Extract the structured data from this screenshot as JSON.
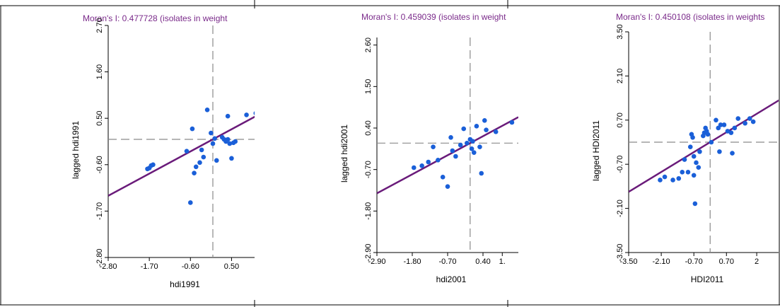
{
  "chart_data": [
    {
      "type": "scatter",
      "title": "Moran's I: 0.477728 (isolates in weight",
      "xlabel": "hdi1991",
      "ylabel": "lagged hdi1991",
      "xlim": [
        -2.8,
        1.4
      ],
      "ylim": [
        -2.8,
        2.7
      ],
      "xticks": [
        "-2.80",
        "-1.70",
        "-0.60",
        "0.50"
      ],
      "yticks": [
        "-2.80",
        "-1.70",
        "-0.60",
        "0.50",
        "1.60",
        "2.70"
      ],
      "regression": {
        "slope": 0.477728,
        "intercept": 0.0
      },
      "reference_lines": {
        "x": 0,
        "y": 0
      },
      "points": [
        [
          -1.75,
          -0.7
        ],
        [
          -1.7,
          -0.68
        ],
        [
          -1.65,
          -0.62
        ],
        [
          -1.6,
          -0.6
        ],
        [
          -0.6,
          -1.5
        ],
        [
          -0.55,
          0.25
        ],
        [
          -0.5,
          -0.8
        ],
        [
          -0.45,
          -0.65
        ],
        [
          -0.35,
          -0.55
        ],
        [
          -0.3,
          -0.25
        ],
        [
          -0.25,
          -0.42
        ],
        [
          -0.15,
          0.7
        ],
        [
          -0.05,
          0.15
        ],
        [
          0.0,
          -0.1
        ],
        [
          0.05,
          0.02
        ],
        [
          0.1,
          -0.5
        ],
        [
          0.25,
          0.05
        ],
        [
          0.3,
          0.0
        ],
        [
          0.35,
          -0.05
        ],
        [
          0.4,
          0.55
        ],
        [
          0.4,
          0.0
        ],
        [
          0.45,
          -0.1
        ],
        [
          0.5,
          -0.45
        ],
        [
          0.55,
          -0.08
        ],
        [
          0.6,
          -0.05
        ],
        [
          0.9,
          0.58
        ],
        [
          1.15,
          0.62
        ],
        [
          -0.7,
          -0.28
        ]
      ]
    },
    {
      "type": "scatter",
      "title": "Moran's I: 0.459039 (isolates in weight",
      "xlabel": "hdi2001",
      "ylabel": "lagged hdi2001",
      "xlim": [
        -2.9,
        1.5
      ],
      "ylim": [
        -2.9,
        2.8
      ],
      "xticks": [
        "-2.90",
        "-1.80",
        "-0.70",
        "0.40",
        "1."
      ],
      "yticks": [
        "-2.90",
        "-1.80",
        "-0.70",
        "0.40",
        "1.50",
        "2.60"
      ],
      "regression": {
        "slope": 0.459039,
        "intercept": 0.0
      },
      "reference_lines": {
        "x": 0,
        "y": 0
      },
      "points": [
        [
          -1.75,
          -0.65
        ],
        [
          -1.5,
          -0.6
        ],
        [
          -1.3,
          -0.5
        ],
        [
          -1.15,
          -0.1
        ],
        [
          -1.0,
          -0.45
        ],
        [
          -0.85,
          -0.9
        ],
        [
          -0.7,
          -1.15
        ],
        [
          -0.6,
          0.15
        ],
        [
          -0.55,
          -0.2
        ],
        [
          -0.45,
          -0.35
        ],
        [
          -0.3,
          -0.05
        ],
        [
          -0.2,
          0.38
        ],
        [
          -0.1,
          0.0
        ],
        [
          0.0,
          0.1
        ],
        [
          0.05,
          -0.15
        ],
        [
          0.08,
          0.05
        ],
        [
          0.12,
          -0.25
        ],
        [
          0.2,
          0.45
        ],
        [
          0.3,
          -0.1
        ],
        [
          0.35,
          -0.8
        ],
        [
          0.45,
          0.6
        ],
        [
          0.5,
          0.35
        ],
        [
          0.8,
          0.3
        ],
        [
          1.3,
          0.55
        ]
      ]
    },
    {
      "type": "scatter",
      "title": "Moran's I: 0.450108 (isolates in weights",
      "xlabel": "HDI2011",
      "ylabel": "lagged HDI2011",
      "xlim": [
        -3.5,
        3.0
      ],
      "ylim": [
        -3.5,
        3.5
      ],
      "xticks": [
        "-3.50",
        "-2.10",
        "-0.70",
        "0.70",
        "2"
      ],
      "yticks": [
        "-3.50",
        "-2.10",
        "-0.70",
        "0.70",
        "2.10",
        "3.50"
      ],
      "regression": {
        "slope": 0.450108,
        "intercept": 0.0
      },
      "reference_lines": {
        "x": 0,
        "y": 0
      },
      "points": [
        [
          -2.15,
          -1.2
        ],
        [
          -1.95,
          -1.1
        ],
        [
          -1.6,
          -1.2
        ],
        [
          -1.35,
          -1.15
        ],
        [
          -1.2,
          -0.95
        ],
        [
          -1.1,
          -0.55
        ],
        [
          -0.95,
          -0.95
        ],
        [
          -0.85,
          -0.15
        ],
        [
          -0.8,
          0.25
        ],
        [
          -0.75,
          0.15
        ],
        [
          -0.7,
          -0.45
        ],
        [
          -0.7,
          -1.05
        ],
        [
          -0.65,
          -1.95
        ],
        [
          -0.6,
          -0.65
        ],
        [
          -0.5,
          -0.8
        ],
        [
          -0.45,
          -0.3
        ],
        [
          -0.3,
          0.2
        ],
        [
          -0.25,
          0.3
        ],
        [
          -0.2,
          0.45
        ],
        [
          -0.15,
          0.35
        ],
        [
          -0.1,
          0.25
        ],
        [
          0.05,
          0.0
        ],
        [
          0.25,
          0.7
        ],
        [
          0.35,
          0.45
        ],
        [
          0.45,
          0.55
        ],
        [
          0.6,
          0.55
        ],
        [
          0.75,
          0.35
        ],
        [
          0.9,
          0.3
        ],
        [
          1.05,
          0.45
        ],
        [
          1.2,
          0.75
        ],
        [
          1.5,
          0.6
        ],
        [
          1.7,
          0.75
        ],
        [
          1.85,
          0.65
        ],
        [
          0.4,
          -0.3
        ],
        [
          0.95,
          -0.35
        ]
      ]
    }
  ]
}
